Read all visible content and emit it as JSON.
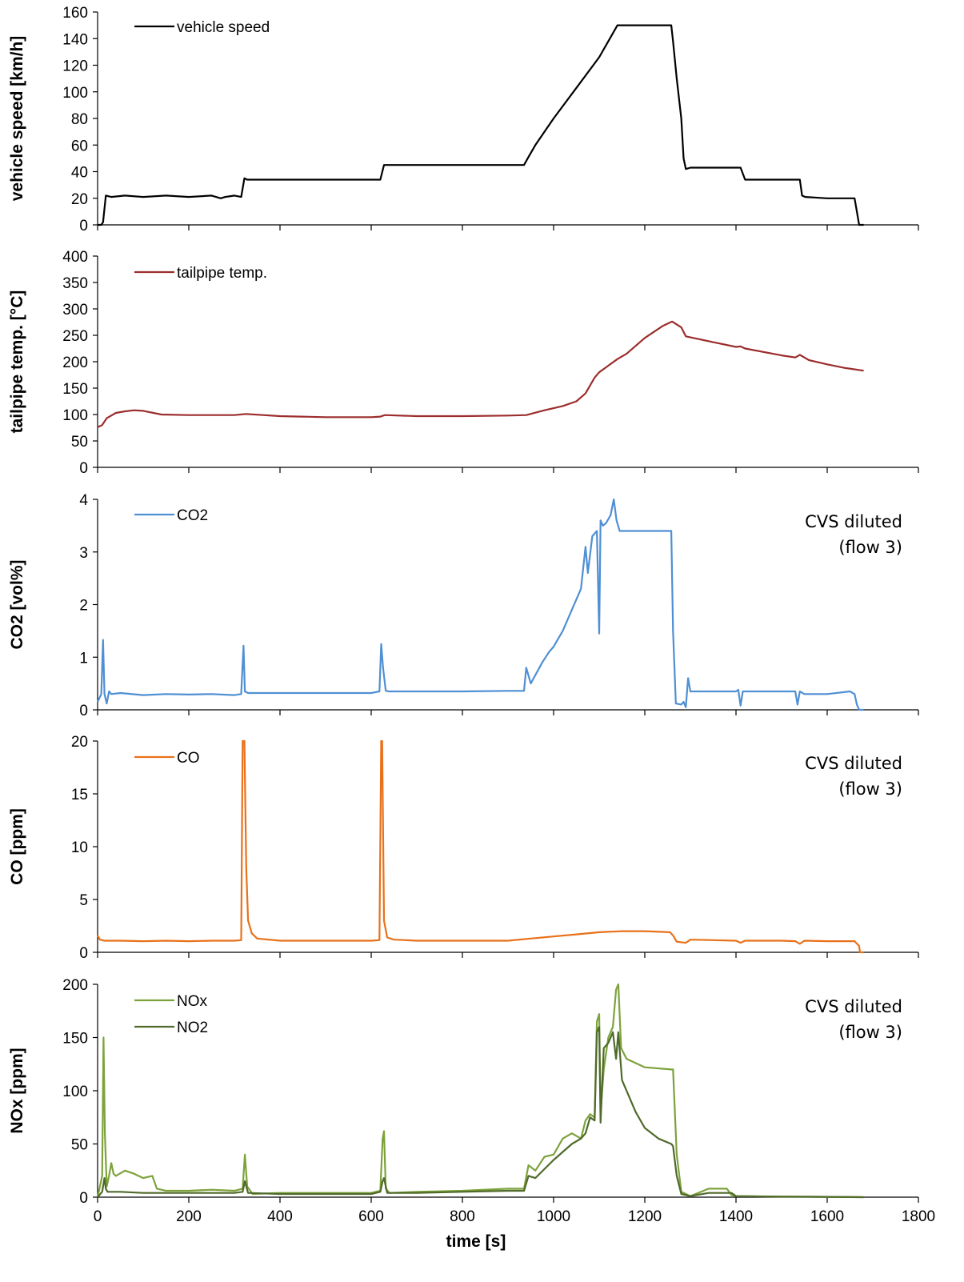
{
  "chart_data": [
    {
      "type": "line",
      "ylabel": "vehicle speed [km/h]",
      "ylim": [
        0,
        160
      ],
      "yticks": [
        "0",
        "20",
        "40",
        "60",
        "80",
        "100",
        "120",
        "140",
        "160"
      ],
      "xlim": [
        0,
        1800
      ],
      "legend_placement": "top-left",
      "annotation": [],
      "series": [
        {
          "name": "vehicle speed",
          "color": "#000000",
          "x": [
            0,
            8,
            12,
            18,
            30,
            60,
            100,
            150,
            200,
            250,
            270,
            280,
            300,
            315,
            322,
            328,
            400,
            500,
            600,
            620,
            628,
            634,
            700,
            800,
            900,
            935,
            945,
            960,
            1000,
            1050,
            1100,
            1130,
            1140,
            1150,
            1200,
            1258,
            1262,
            1270,
            1280,
            1285,
            1290,
            1300,
            1400,
            1410,
            1420,
            1500,
            1540,
            1545,
            1552,
            1600,
            1650,
            1660,
            1665,
            1670,
            1680
          ],
          "y": [
            0,
            0,
            2,
            22,
            21,
            22,
            21,
            22,
            21,
            22,
            20,
            21,
            22,
            21,
            35,
            34,
            34,
            34,
            34,
            34,
            45,
            45,
            45,
            45,
            45,
            45,
            51,
            60,
            80,
            103,
            126,
            144,
            150,
            150,
            150,
            150,
            138,
            110,
            80,
            50,
            42,
            43,
            43,
            43,
            34,
            34,
            34,
            22,
            21,
            20,
            20,
            20,
            10,
            0,
            0
          ]
        }
      ]
    },
    {
      "type": "line",
      "ylabel": "tailpipe temp. [°C]",
      "ylim": [
        0,
        400
      ],
      "yticks": [
        "0",
        "50",
        "100",
        "150",
        "200",
        "250",
        "300",
        "350",
        "400"
      ],
      "xlim": [
        0,
        1800
      ],
      "legend_placement": "top-left",
      "annotation": [],
      "series": [
        {
          "name": "tailpipe temp.",
          "color": "#9c2d2d",
          "x": [
            0,
            10,
            20,
            40,
            60,
            80,
            100,
            140,
            200,
            300,
            325,
            400,
            500,
            600,
            620,
            630,
            700,
            800,
            900,
            940,
            980,
            1020,
            1050,
            1070,
            1090,
            1100,
            1140,
            1160,
            1200,
            1240,
            1260,
            1280,
            1290,
            1350,
            1400,
            1410,
            1420,
            1500,
            1530,
            1540,
            1560,
            1600,
            1640,
            1680
          ],
          "y": [
            76,
            80,
            93,
            103,
            106,
            108,
            107,
            100,
            99,
            99,
            101,
            97,
            95,
            95,
            96,
            99,
            97,
            97,
            98,
            99,
            108,
            116,
            125,
            140,
            170,
            180,
            205,
            215,
            245,
            268,
            276,
            265,
            248,
            237,
            228,
            229,
            225,
            212,
            208,
            213,
            203,
            195,
            188,
            183
          ]
        }
      ]
    },
    {
      "type": "line",
      "ylabel": "CO2 [vol%]",
      "ylim": [
        0,
        4
      ],
      "yticks": [
        "0",
        "1",
        "2",
        "3",
        "4"
      ],
      "xlim": [
        0,
        1800
      ],
      "legend_placement": "top-left",
      "annotation": [
        "CVS diluted",
        "(flow 3)"
      ],
      "series": [
        {
          "name": "CO2",
          "color": "#4f8fd3",
          "x": [
            0,
            8,
            12,
            15,
            20,
            25,
            30,
            50,
            100,
            150,
            200,
            250,
            300,
            315,
            320,
            323,
            330,
            340,
            400,
            500,
            600,
            618,
            622,
            626,
            632,
            640,
            700,
            800,
            900,
            935,
            940,
            950,
            975,
            990,
            1000,
            1020,
            1040,
            1060,
            1070,
            1075,
            1085,
            1095,
            1100,
            1103,
            1108,
            1115,
            1125,
            1132,
            1138,
            1145,
            1150,
            1200,
            1250,
            1258,
            1262,
            1268,
            1280,
            1285,
            1290,
            1295,
            1300,
            1400,
            1405,
            1410,
            1415,
            1420,
            1500,
            1530,
            1535,
            1540,
            1550,
            1600,
            1650,
            1660,
            1665,
            1670,
            1680
          ],
          "y": [
            0.15,
            0.3,
            1.33,
            0.3,
            0.12,
            0.35,
            0.3,
            0.32,
            0.28,
            0.3,
            0.29,
            0.3,
            0.28,
            0.3,
            1.22,
            0.35,
            0.32,
            0.32,
            0.32,
            0.32,
            0.32,
            0.35,
            1.25,
            0.8,
            0.36,
            0.35,
            0.35,
            0.35,
            0.36,
            0.36,
            0.8,
            0.5,
            0.9,
            1.1,
            1.2,
            1.5,
            1.9,
            2.3,
            3.1,
            2.6,
            3.3,
            3.4,
            1.45,
            3.6,
            3.5,
            3.55,
            3.7,
            4.0,
            3.6,
            3.4,
            3.4,
            3.4,
            3.4,
            3.4,
            1.5,
            0.12,
            0.1,
            0.15,
            0.05,
            0.6,
            0.35,
            0.35,
            0.38,
            0.08,
            0.35,
            0.35,
            0.35,
            0.35,
            0.1,
            0.35,
            0.3,
            0.3,
            0.35,
            0.3,
            0.1,
            0.0,
            0.0
          ]
        }
      ]
    },
    {
      "type": "line",
      "ylabel": "CO [ppm]",
      "ylim": [
        0,
        20
      ],
      "yticks": [
        "0",
        "5",
        "10",
        "15",
        "20"
      ],
      "xlim": [
        0,
        1800
      ],
      "legend_placement": "top-left",
      "annotation": [
        "CVS diluted",
        "(flow 3)"
      ],
      "series": [
        {
          "name": "CO",
          "color": "#e8711a",
          "x": [
            0,
            5,
            15,
            50,
            100,
            150,
            200,
            250,
            300,
            315,
            318,
            322,
            326,
            330,
            338,
            350,
            400,
            500,
            600,
            618,
            622,
            624,
            628,
            635,
            650,
            700,
            800,
            900,
            950,
            1000,
            1050,
            1100,
            1150,
            1200,
            1255,
            1262,
            1270,
            1290,
            1300,
            1400,
            1410,
            1420,
            1500,
            1530,
            1540,
            1550,
            1600,
            1660,
            1670,
            1672,
            1680
          ],
          "y": [
            1.6,
            1.2,
            1.1,
            1.1,
            1.05,
            1.1,
            1.05,
            1.1,
            1.1,
            1.15,
            20,
            20,
            8,
            3,
            1.8,
            1.3,
            1.1,
            1.1,
            1.1,
            1.15,
            20,
            20,
            3,
            1.4,
            1.2,
            1.1,
            1.1,
            1.1,
            1.3,
            1.5,
            1.7,
            1.9,
            2.0,
            2.0,
            1.9,
            1.6,
            1.0,
            0.9,
            1.2,
            1.1,
            0.9,
            1.1,
            1.1,
            1.05,
            0.8,
            1.1,
            1.05,
            1.05,
            0.6,
            0.0,
            0.0
          ]
        }
      ]
    },
    {
      "type": "line",
      "ylabel": "NOx [ppm]",
      "xlabel": "time [s]",
      "ylim": [
        0,
        200
      ],
      "yticks": [
        "0",
        "50",
        "100",
        "150",
        "200"
      ],
      "xlim": [
        0,
        1800
      ],
      "xticks": [
        "0",
        "200",
        "400",
        "600",
        "800",
        "1000",
        "1200",
        "1400",
        "1600",
        "1800"
      ],
      "legend_placement": "top-left",
      "annotation": [
        "CVS diluted",
        "(flow 3)"
      ],
      "series": [
        {
          "name": "NOx",
          "color": "#7da23b",
          "x": [
            0,
            10,
            13,
            16,
            20,
            25,
            30,
            35,
            40,
            60,
            80,
            100,
            120,
            130,
            140,
            150,
            200,
            250,
            300,
            318,
            323,
            328,
            340,
            400,
            500,
            600,
            620,
            625,
            628,
            632,
            640,
            700,
            800,
            900,
            935,
            945,
            960,
            980,
            1000,
            1020,
            1040,
            1060,
            1070,
            1080,
            1090,
            1095,
            1100,
            1103,
            1110,
            1120,
            1130,
            1137,
            1142,
            1148,
            1160,
            1200,
            1258,
            1262,
            1270,
            1280,
            1300,
            1340,
            1380,
            1390,
            1400,
            1500,
            1600,
            1680
          ],
          "y": [
            0,
            20,
            150,
            60,
            10,
            20,
            32,
            22,
            20,
            25,
            22,
            18,
            20,
            8,
            7,
            6,
            6,
            7,
            6,
            8,
            40,
            10,
            3,
            4,
            4,
            4,
            6,
            55,
            62,
            8,
            4,
            5,
            6,
            8,
            8,
            30,
            25,
            38,
            40,
            55,
            60,
            55,
            72,
            78,
            75,
            165,
            172,
            80,
            120,
            150,
            160,
            195,
            200,
            140,
            130,
            122,
            120,
            120,
            40,
            5,
            1,
            8,
            8,
            2,
            1,
            0.5,
            0.3,
            0
          ]
        },
        {
          "name": "NO2",
          "color": "#4f6a2a",
          "x": [
            0,
            10,
            15,
            18,
            22,
            30,
            50,
            100,
            150,
            200,
            250,
            300,
            318,
            323,
            330,
            400,
            500,
            600,
            620,
            625,
            628,
            635,
            700,
            800,
            900,
            935,
            945,
            960,
            1000,
            1040,
            1060,
            1070,
            1080,
            1090,
            1095,
            1100,
            1103,
            1110,
            1120,
            1130,
            1137,
            1142,
            1150,
            1180,
            1200,
            1230,
            1258,
            1262,
            1270,
            1280,
            1300,
            1340,
            1390,
            1400,
            1500,
            1600,
            1680
          ],
          "y": [
            0,
            5,
            18,
            8,
            5,
            5,
            5,
            4,
            4,
            4,
            4,
            4,
            5,
            15,
            4,
            3,
            3,
            3,
            5,
            15,
            18,
            4,
            4,
            5,
            6,
            6,
            20,
            18,
            35,
            50,
            55,
            60,
            75,
            72,
            155,
            160,
            70,
            140,
            145,
            155,
            130,
            155,
            110,
            80,
            65,
            55,
            50,
            48,
            20,
            3,
            1,
            4,
            4,
            1,
            0.5,
            0.3,
            0
          ]
        }
      ]
    }
  ]
}
